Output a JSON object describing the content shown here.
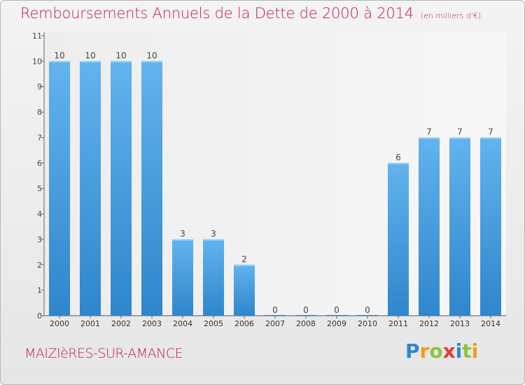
{
  "header": {
    "title": "Remboursements Annuels de la Dette de 2000 à 2014",
    "unit": "(en milliers d'€)"
  },
  "footer": {
    "city": "MAIZIèRES-SUR-AMANCE",
    "logo_text": "Proxiti"
  },
  "colors": {
    "title": "#c2185b",
    "bar_top": "#62b3ee",
    "bar_bottom": "#2f86cc"
  },
  "chart_data": {
    "type": "bar",
    "categories": [
      "2000",
      "2001",
      "2002",
      "2003",
      "2004",
      "2005",
      "2006",
      "2007",
      "2008",
      "2009",
      "2010",
      "2011",
      "2012",
      "2013",
      "2014"
    ],
    "values": [
      10,
      10,
      10,
      10,
      3,
      3,
      2,
      0,
      0,
      0,
      0,
      6,
      7,
      7,
      7
    ],
    "title": "Remboursements Annuels de la Dette de 2000 à 2014",
    "subtitle": "(en milliers d'€)",
    "ylim": [
      0,
      11
    ],
    "yticks": [
      0,
      1,
      2,
      3,
      4,
      5,
      6,
      7,
      8,
      9,
      10,
      11
    ],
    "grid": false,
    "data_labels": true
  }
}
